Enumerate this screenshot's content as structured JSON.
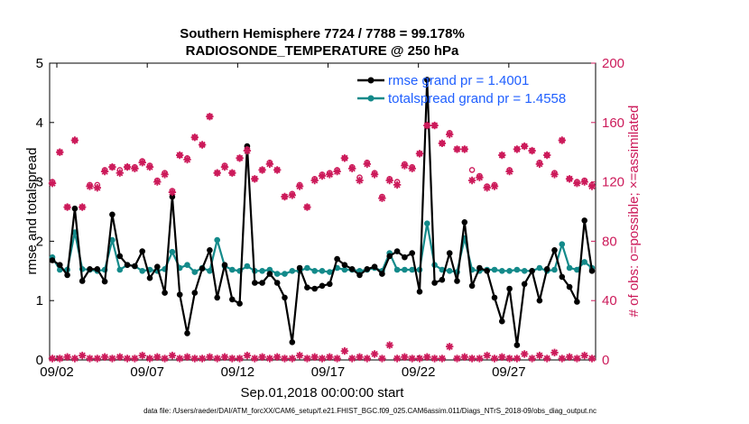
{
  "chart_data": {
    "type": "line",
    "title": [
      "Southern Hemisphere 7724 / 7788 = 99.178%",
      "RADIOSONDE_TEMPERATURE @ 250 hPa"
    ],
    "xlabel": "Sep.01,2018 00:00:00 start",
    "ylabel": "rmse and totalspread",
    "ylabel_right": "# of obs: o=possible; ×=assimilated",
    "footnote": "data file: /Users/raeder/DAI/ATM_forcXX/CAM6_setup/f.e21.FHIST_BGC.f09_025.CAM6assim.011/Diags_NTrS_2018-09/obs_diag_output.nc",
    "x_range_days": [
      0.6,
      30.8
    ],
    "ylim": [
      0,
      5
    ],
    "ylim_right": [
      0,
      200
    ],
    "xticks": [
      {
        "label": "09/02",
        "day": 1
      },
      {
        "label": "09/07",
        "day": 6
      },
      {
        "label": "09/12",
        "day": 11
      },
      {
        "label": "09/17",
        "day": 16
      },
      {
        "label": "09/22",
        "day": 21
      },
      {
        "label": "09/27",
        "day": 26
      }
    ],
    "yticks_left": [
      "0",
      "1",
      "2",
      "3",
      "4",
      "5"
    ],
    "yticks_right": [
      "0",
      "40",
      "80",
      "120",
      "160",
      "200"
    ],
    "legend": [
      {
        "label": "rmse grand pr = 1.4001",
        "color": "#000000"
      },
      {
        "label": "totalspread grand pr = 1.4558",
        "color": "#138a8a"
      }
    ],
    "series": [
      {
        "name": "rmse",
        "color": "#000000",
        "values": [
          1.68,
          1.6,
          1.43,
          2.55,
          1.33,
          1.53,
          1.53,
          1.32,
          2.45,
          1.75,
          1.6,
          1.58,
          1.83,
          1.38,
          1.57,
          1.13,
          2.75,
          1.1,
          0.45,
          1.13,
          1.54,
          1.85,
          1.05,
          1.6,
          1.02,
          0.95,
          3.6,
          1.3,
          1.3,
          1.45,
          1.3,
          1.05,
          0.3,
          1.55,
          1.22,
          1.2,
          1.25,
          1.28,
          1.7,
          1.6,
          1.53,
          1.43,
          1.53,
          1.57,
          1.45,
          1.75,
          1.83,
          1.73,
          1.8,
          1.15,
          4.72,
          1.3,
          1.35,
          1.8,
          1.33,
          2.32,
          1.25,
          1.55,
          1.5,
          1.05,
          0.65,
          1.2,
          0.25,
          1.28,
          1.5,
          1.0,
          1.53,
          1.85,
          1.4,
          1.23,
          0.98,
          2.35,
          1.5
        ]
      },
      {
        "name": "totalspread",
        "color": "#138a8a",
        "values": [
          1.73,
          1.52,
          1.52,
          2.15,
          1.53,
          1.52,
          1.5,
          1.52,
          2.02,
          1.52,
          1.6,
          1.58,
          1.5,
          1.52,
          1.5,
          1.53,
          1.82,
          1.55,
          1.6,
          1.48,
          1.55,
          1.5,
          2.02,
          1.58,
          1.52,
          1.5,
          1.58,
          1.5,
          1.5,
          1.52,
          1.45,
          1.45,
          1.5,
          1.5,
          1.55,
          1.5,
          1.5,
          1.48,
          1.55,
          1.52,
          1.52,
          1.5,
          1.52,
          1.55,
          1.5,
          1.8,
          1.52,
          1.52,
          1.52,
          1.52,
          2.3,
          1.6,
          1.52,
          1.5,
          1.48,
          2.05,
          1.52,
          1.5,
          1.52,
          1.52,
          1.5,
          1.5,
          1.52,
          1.5,
          1.5,
          1.55,
          1.5,
          1.52,
          1.95,
          1.55,
          1.52,
          1.65,
          1.55
        ]
      }
    ],
    "obs_possible": [
      120,
      140,
      103,
      148,
      103,
      118,
      118,
      128,
      130,
      128,
      130,
      130,
      134,
      131,
      121,
      126,
      114,
      138,
      136,
      150,
      145,
      164,
      126,
      131,
      126,
      136,
      142,
      122,
      128,
      133,
      128,
      110,
      112,
      118,
      103,
      122,
      125,
      126,
      128,
      136,
      130,
      123,
      133,
      126,
      110,
      122,
      120,
      132,
      130,
      139,
      158,
      158,
      146,
      153,
      142,
      142,
      128,
      124,
      117,
      118,
      138,
      128,
      142,
      144,
      141,
      133,
      138,
      126,
      148,
      122,
      120,
      121,
      118
    ],
    "obs_assimilated": [
      119,
      140,
      103,
      148,
      103,
      117,
      116,
      127,
      130,
      126,
      130,
      129,
      133,
      130,
      120,
      125,
      113,
      138,
      135,
      150,
      145,
      164,
      126,
      130,
      126,
      136,
      141,
      122,
      128,
      132,
      128,
      110,
      111,
      117,
      103,
      121,
      124,
      125,
      127,
      136,
      129,
      121,
      132,
      125,
      109,
      121,
      118,
      131,
      129,
      139,
      158,
      158,
      146,
      152,
      142,
      142,
      121,
      123,
      116,
      117,
      138,
      127,
      142,
      144,
      141,
      132,
      138,
      125,
      148,
      122,
      119,
      120,
      117
    ],
    "obs_bottom": [
      1,
      1,
      2,
      1,
      3,
      1,
      1,
      2,
      1,
      2,
      1,
      1,
      3,
      1,
      2,
      1,
      3,
      1,
      2,
      1,
      1,
      2,
      1,
      2,
      1,
      1,
      3,
      1,
      2,
      1,
      2,
      1,
      1,
      3,
      1,
      2,
      1,
      2,
      1,
      6,
      1,
      2,
      1,
      4,
      1,
      10,
      1,
      2,
      1,
      1,
      2,
      1,
      1,
      9,
      1,
      2,
      1,
      1,
      3,
      1,
      2,
      1,
      1,
      4,
      1,
      3,
      1,
      5,
      1,
      2,
      1,
      3,
      1
    ]
  }
}
